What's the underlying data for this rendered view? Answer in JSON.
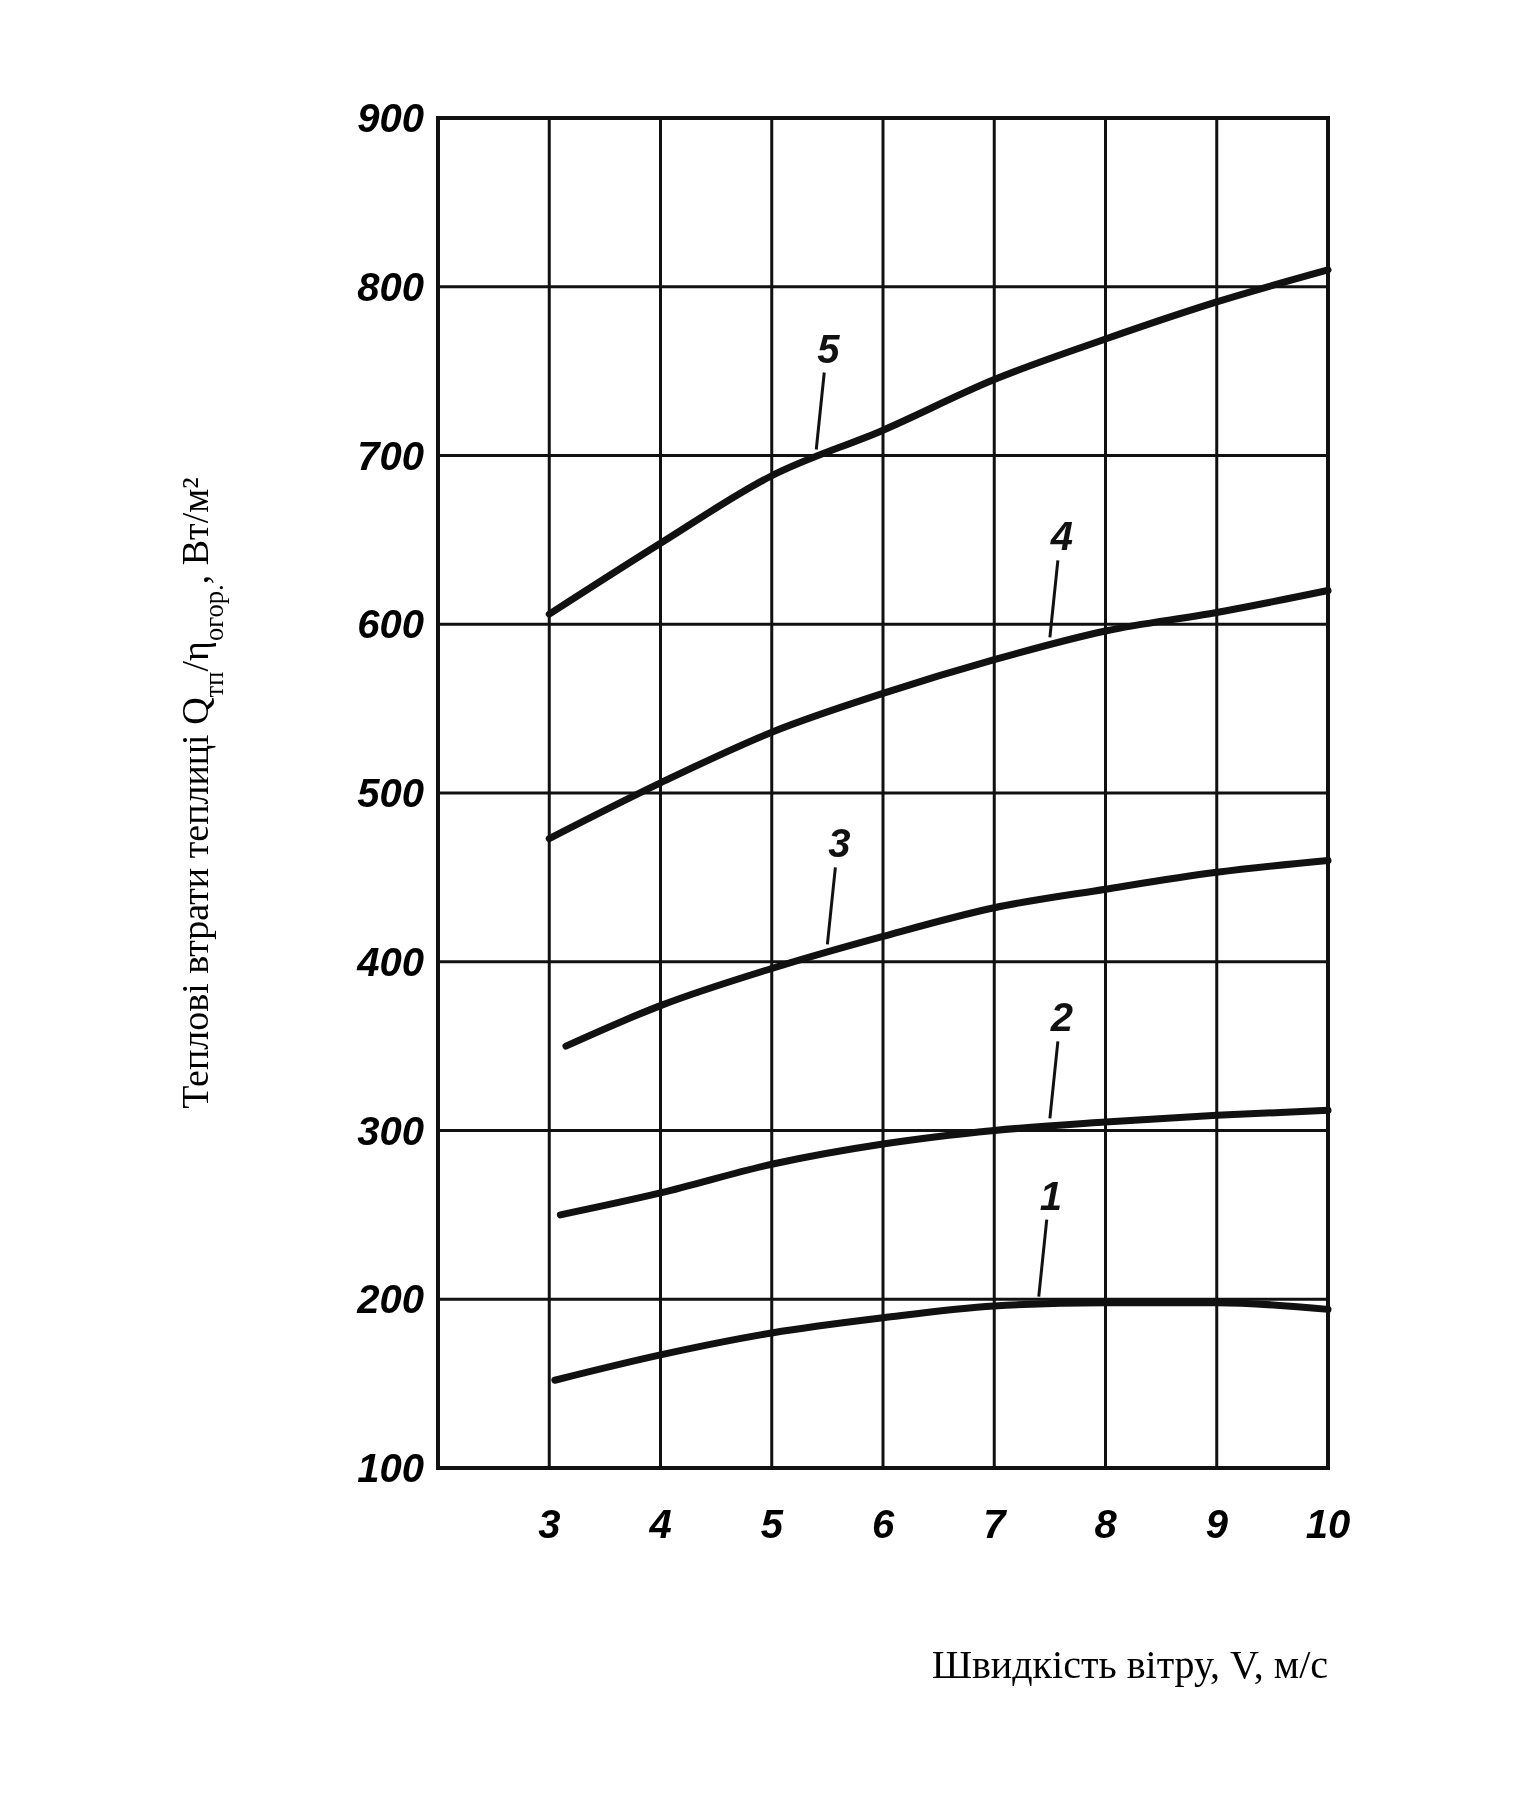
{
  "chart_data": {
    "type": "line",
    "xlabel": "Швидкість вітру, V, м/с",
    "ylabel": "Теплові втрати теплиці Q$_{тп}$/η$_{огор.}$, Вт/м²",
    "xlim": [
      2,
      10
    ],
    "xticks": [
      3,
      4,
      5,
      6,
      7,
      8,
      9,
      10
    ],
    "ylim": [
      100,
      900
    ],
    "yticks": [
      100,
      200,
      300,
      400,
      500,
      600,
      700,
      800,
      900
    ],
    "grid": true,
    "marker": "none",
    "line_style": "solid",
    "series": [
      {
        "name": "1",
        "color": "#111111",
        "x": [
          3.05,
          4,
          5,
          6,
          7,
          8,
          9,
          10
        ],
        "values": [
          152,
          167,
          180,
          189,
          196,
          198,
          198,
          194
        ]
      },
      {
        "name": "2",
        "color": "#111111",
        "x": [
          3.1,
          4,
          5,
          6,
          7,
          8,
          9,
          10
        ],
        "values": [
          250,
          263,
          280,
          292,
          300,
          305,
          309,
          312
        ]
      },
      {
        "name": "3",
        "color": "#111111",
        "x": [
          3.15,
          4,
          5,
          6,
          7,
          8,
          9,
          10
        ],
        "values": [
          350,
          374,
          396,
          415,
          432,
          443,
          453,
          460
        ]
      },
      {
        "name": "4",
        "color": "#111111",
        "x": [
          3,
          4,
          5,
          6,
          7,
          8,
          9,
          10
        ],
        "values": [
          473,
          506,
          536,
          559,
          579,
          596,
          607,
          620
        ]
      },
      {
        "name": "5",
        "color": "#111111",
        "x": [
          3,
          4,
          5,
          6,
          7,
          8,
          9,
          10
        ],
        "values": [
          606,
          648,
          688,
          715,
          745,
          769,
          791,
          810
        ]
      }
    ]
  }
}
